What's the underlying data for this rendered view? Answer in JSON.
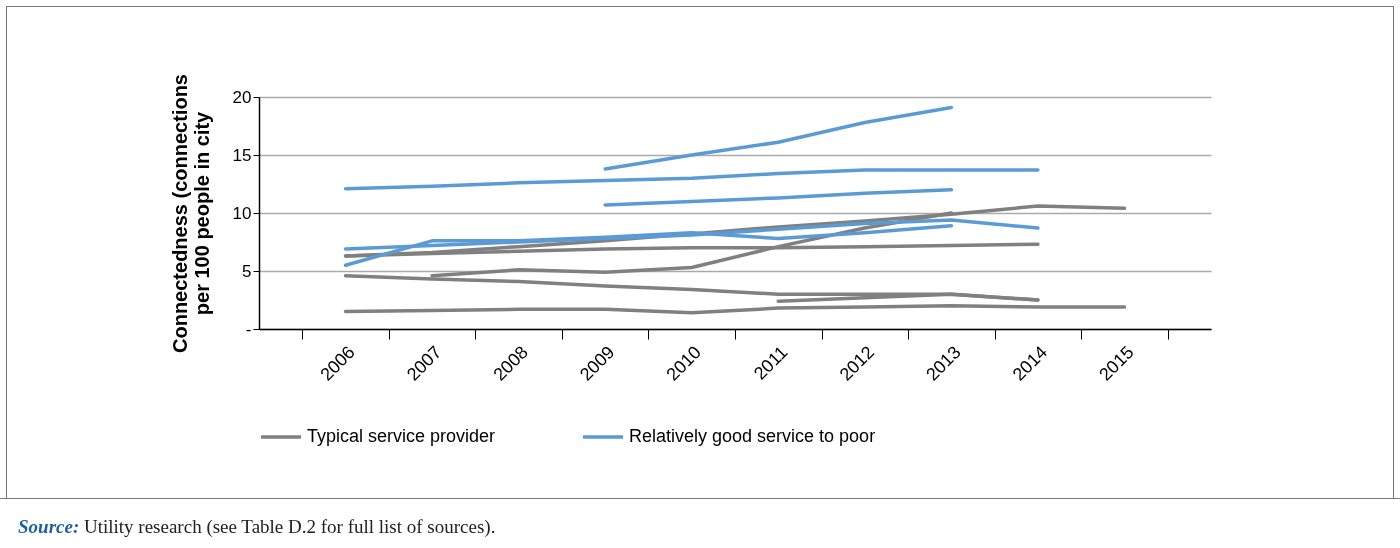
{
  "chart_data": {
    "type": "line",
    "ylabel": "Connectedness (connections per 100 people in city",
    "categories": [
      "2006",
      "2007",
      "2008",
      "2009",
      "2010",
      "2011",
      "2012",
      "2013",
      "2014",
      "2015"
    ],
    "series": [
      {
        "name": "Typical service provider",
        "color": "#808080",
        "values": [
          6.3,
          6.6,
          7.1,
          7.6,
          8.2,
          8.8,
          9.3,
          9.9,
          10.6,
          10.4
        ]
      },
      {
        "color": "#808080",
        "values": [
          6.3,
          6.5,
          6.7,
          6.9,
          7.0,
          7.0,
          7.1,
          7.2,
          7.3,
          null
        ]
      },
      {
        "color": "#808080",
        "values": [
          null,
          4.6,
          5.1,
          4.9,
          5.3,
          7.1,
          8.7,
          10.0,
          null,
          null
        ]
      },
      {
        "color": "#808080",
        "values": [
          4.6,
          4.3,
          4.1,
          3.7,
          3.4,
          3.0,
          3.0,
          3.0,
          2.5,
          null
        ]
      },
      {
        "color": "#808080",
        "values": [
          null,
          null,
          null,
          null,
          null,
          2.4,
          2.7,
          3.0,
          2.5,
          null
        ]
      },
      {
        "color": "#808080",
        "values": [
          1.5,
          1.6,
          1.7,
          1.7,
          1.4,
          1.8,
          1.9,
          2.0,
          1.9,
          1.9
        ]
      },
      {
        "name": "Relatively good service to poor",
        "color": "#5b9bd5",
        "values": [
          null,
          null,
          null,
          13.8,
          15.0,
          16.1,
          17.8,
          19.1,
          null,
          null
        ]
      },
      {
        "color": "#5b9bd5",
        "values": [
          12.1,
          12.3,
          12.6,
          12.8,
          13.0,
          13.4,
          13.7,
          13.7,
          13.7,
          null
        ]
      },
      {
        "color": "#5b9bd5",
        "values": [
          null,
          null,
          null,
          10.7,
          11.0,
          11.3,
          11.7,
          12.0,
          null,
          null
        ]
      },
      {
        "color": "#5b9bd5",
        "values": [
          6.9,
          7.2,
          7.5,
          7.8,
          8.1,
          8.6,
          9.1,
          9.4,
          8.7,
          null
        ]
      },
      {
        "color": "#5b9bd5",
        "values": [
          5.5,
          7.6,
          7.6,
          7.9,
          8.3,
          7.8,
          8.3,
          8.9,
          null,
          null
        ]
      }
    ],
    "ylim": [
      0,
      20
    ],
    "yticks": [
      {
        "value": 0,
        "label": "-"
      },
      5,
      10,
      15,
      20
    ],
    "grid": "y",
    "legend": "bottom",
    "line_style": "solid",
    "marker": "none",
    "annotations": [
      "Source: Utility research (see Table D.2 for full list of sources)."
    ]
  }
}
